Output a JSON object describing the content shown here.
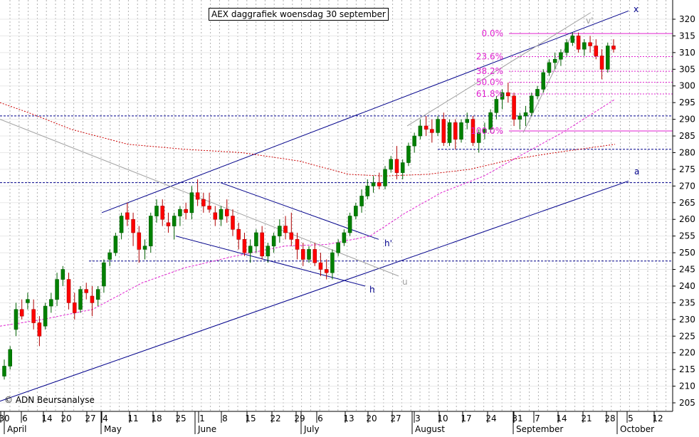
{
  "title": "AEX daggrafiek woensdag 30 september",
  "copyright": "© ADN Beursanalyse",
  "colors": {
    "grid": "#b0b0b0",
    "channel": "#00008b",
    "level": "#00008b",
    "fib": "#e020d0",
    "ma_long": "#cc0000",
    "ma_mid": "#e020d0",
    "trend_gray": "#a0a0a0",
    "up": "#008000",
    "down": "#ff0000",
    "axis_text": "#000000"
  },
  "chart_data": {
    "type": "candlestick",
    "title": "AEX daggrafiek woensdag 30 september",
    "y_axis": {
      "position": "right",
      "min": 203,
      "max": 327,
      "ticks": [
        205,
        210,
        215,
        220,
        225,
        230,
        235,
        240,
        245,
        250,
        255,
        260,
        265,
        270,
        275,
        280,
        285,
        290,
        295,
        300,
        305,
        310,
        315,
        320
      ]
    },
    "x_axis": {
      "day_labels": [
        "30",
        "6",
        "14",
        "20",
        "27",
        "4",
        "11",
        "18",
        "25",
        "1",
        "8",
        "15",
        "22",
        "29",
        "6",
        "13",
        "20",
        "27",
        "3",
        "10",
        "17",
        "24",
        "31",
        "7",
        "14",
        "21",
        "28",
        "5",
        "12"
      ],
      "month_labels": [
        "April",
        "May",
        "June",
        "July",
        "August",
        "September",
        "October"
      ]
    },
    "grid": true,
    "horizontal_levels": [
      291,
      271,
      247.5,
      281,
      286.5
    ],
    "fibonacci": [
      {
        "label": "0.0%",
        "value": 315.7
      },
      {
        "label": "23.6%",
        "value": 308.8
      },
      {
        "label": "38.2%",
        "value": 304.4
      },
      {
        "label": "50.0%",
        "value": 301.1
      },
      {
        "label": "61.8%",
        "value": 297.6
      },
      {
        "label": "100.0%",
        "value": 286.5
      }
    ],
    "line_labels": [
      "x",
      "a",
      "h",
      "h'",
      "u",
      "v'"
    ],
    "candles": [
      [
        213,
        218,
        212,
        216
      ],
      [
        216,
        222,
        215,
        221
      ],
      [
        227,
        235,
        225,
        233
      ],
      [
        233,
        236,
        230,
        231
      ],
      [
        235,
        238,
        233,
        236
      ],
      [
        233,
        236,
        227,
        229
      ],
      [
        229,
        231,
        222,
        225
      ],
      [
        228,
        235,
        227,
        234
      ],
      [
        234,
        238,
        232,
        236
      ],
      [
        236,
        244,
        234,
        242
      ],
      [
        242,
        246,
        240,
        245
      ],
      [
        242,
        244,
        233,
        235
      ],
      [
        235,
        238,
        230,
        232
      ],
      [
        233,
        240,
        232,
        239
      ],
      [
        239,
        241,
        236,
        238
      ],
      [
        237,
        240,
        231,
        235
      ],
      [
        236,
        240,
        234,
        239
      ],
      [
        240,
        248,
        238,
        247
      ],
      [
        248,
        251,
        246,
        250
      ],
      [
        250,
        256,
        249,
        255
      ],
      [
        256,
        262,
        254,
        261
      ],
      [
        262,
        265,
        258,
        260
      ],
      [
        260,
        262,
        252,
        256
      ],
      [
        256,
        258,
        247,
        251
      ],
      [
        251,
        254,
        248,
        252
      ],
      [
        252,
        262,
        250,
        261
      ],
      [
        261,
        266,
        259,
        264
      ],
      [
        264,
        266,
        258,
        260
      ],
      [
        259,
        262,
        256,
        258
      ],
      [
        258,
        262,
        254,
        261
      ],
      [
        261,
        264,
        258,
        263
      ],
      [
        263,
        265,
        260,
        262
      ],
      [
        262,
        270,
        260,
        268
      ],
      [
        268,
        272,
        264,
        266
      ],
      [
        266,
        268,
        262,
        264
      ],
      [
        264,
        268,
        262,
        263
      ],
      [
        262,
        264,
        258,
        260
      ],
      [
        260,
        264,
        258,
        263
      ],
      [
        263,
        266,
        259,
        261
      ],
      [
        261,
        263,
        255,
        257
      ],
      [
        257,
        259,
        251,
        254
      ],
      [
        254,
        256,
        249,
        250
      ],
      [
        250,
        254,
        247,
        252
      ],
      [
        252,
        257,
        250,
        256
      ],
      [
        256,
        258,
        248,
        249
      ],
      [
        249,
        253,
        247,
        252
      ],
      [
        252,
        256,
        250,
        255
      ],
      [
        255,
        260,
        253,
        258
      ],
      [
        258,
        261,
        254,
        256
      ],
      [
        256,
        262,
        252,
        254
      ],
      [
        254,
        256,
        248,
        251
      ],
      [
        251,
        253,
        246,
        248
      ],
      [
        248,
        252,
        247,
        251
      ],
      [
        251,
        253,
        246,
        247
      ],
      [
        247,
        250,
        243,
        245
      ],
      [
        245,
        248,
        242,
        244
      ],
      [
        244,
        251,
        242,
        250
      ],
      [
        250,
        254,
        249,
        253
      ],
      [
        253,
        257,
        252,
        256
      ],
      [
        256,
        262,
        255,
        261
      ],
      [
        261,
        265,
        260,
        264
      ],
      [
        264,
        269,
        262,
        267
      ],
      [
        267,
        272,
        266,
        270
      ],
      [
        270,
        273,
        268,
        271
      ],
      [
        271,
        274,
        269,
        270
      ],
      [
        270,
        276,
        269,
        275
      ],
      [
        275,
        279,
        274,
        278
      ],
      [
        278,
        282,
        272,
        274
      ],
      [
        274,
        278,
        272,
        277
      ],
      [
        277,
        283,
        276,
        282
      ],
      [
        282,
        286,
        280,
        285
      ],
      [
        285,
        290,
        284,
        288
      ],
      [
        288,
        291,
        285,
        287
      ],
      [
        287,
        290,
        283,
        286
      ],
      [
        286,
        291,
        285,
        290
      ],
      [
        290,
        292,
        282,
        283
      ],
      [
        283,
        290,
        282,
        289
      ],
      [
        289,
        290,
        281,
        284
      ],
      [
        284,
        290,
        283,
        289
      ],
      [
        289,
        292,
        287,
        290
      ],
      [
        290,
        291,
        282,
        283
      ],
      [
        283,
        287,
        280,
        286
      ],
      [
        286,
        289,
        284,
        287
      ],
      [
        287,
        293,
        286,
        292
      ],
      [
        292,
        297,
        290,
        296
      ],
      [
        296,
        299,
        293,
        298
      ],
      [
        298,
        301,
        295,
        297
      ],
      [
        297,
        298,
        288,
        290
      ],
      [
        290,
        292,
        287,
        291
      ],
      [
        291,
        294,
        288,
        292
      ],
      [
        292,
        298,
        291,
        297
      ],
      [
        297,
        300,
        296,
        299
      ],
      [
        299,
        305,
        298,
        304
      ],
      [
        304,
        308,
        303,
        307
      ],
      [
        307,
        310,
        305,
        308
      ],
      [
        308,
        311,
        306,
        310
      ],
      [
        310,
        314,
        309,
        313
      ],
      [
        313,
        316,
        312,
        315
      ],
      [
        315,
        316,
        310,
        311
      ],
      [
        311,
        314,
        309,
        313
      ],
      [
        313,
        315,
        310,
        312
      ],
      [
        312,
        314,
        308,
        309
      ],
      [
        309,
        311,
        302,
        305
      ],
      [
        305,
        313,
        304,
        312
      ],
      [
        312,
        314,
        310,
        311
      ]
    ]
  }
}
